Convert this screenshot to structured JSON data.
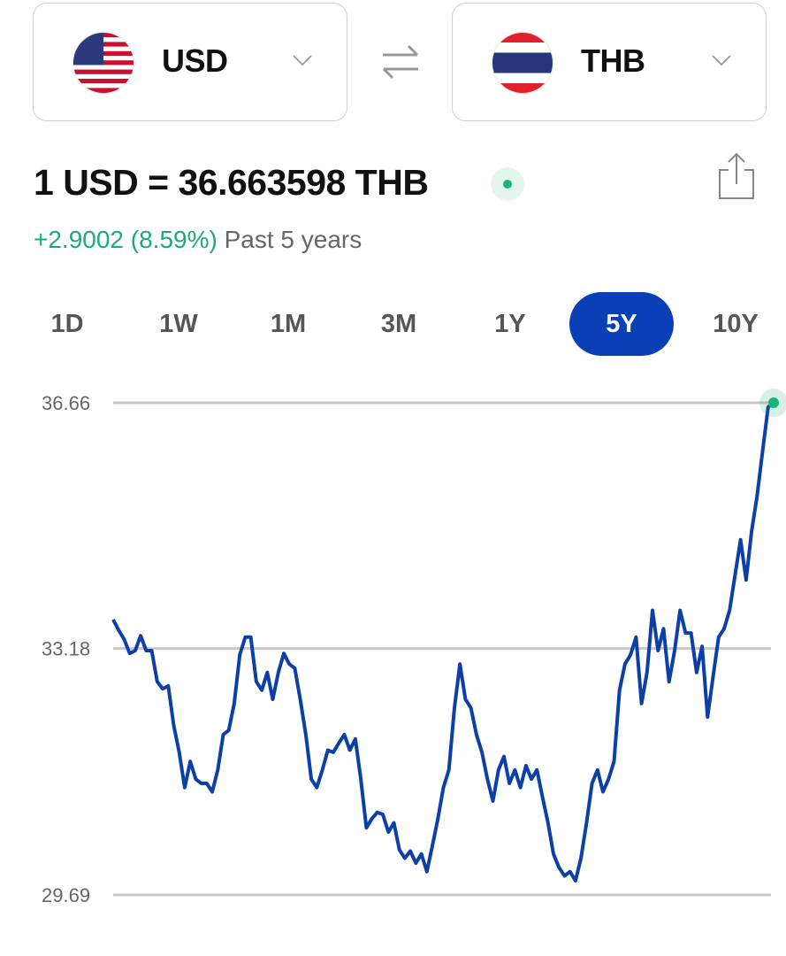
{
  "from_currency": {
    "code": "USD",
    "flag": "us-flag"
  },
  "to_currency": {
    "code": "THB",
    "flag": "thailand-flag"
  },
  "rate_text": "1 USD = 36.663598 THB",
  "change": {
    "value": "+2.9002 (8.59%)",
    "period": "Past 5 years"
  },
  "tabs": [
    {
      "label": "1D"
    },
    {
      "label": "1W"
    },
    {
      "label": "1M"
    },
    {
      "label": "3M"
    },
    {
      "label": "1Y"
    },
    {
      "label": "5Y",
      "active": true
    },
    {
      "label": "10Y"
    }
  ],
  "colors": {
    "accent": "#0a3fb7",
    "line": "#0d3fa8",
    "positive": "#1ea97c",
    "grid": "#c8c8c8"
  },
  "chart_data": {
    "type": "line",
    "title": "",
    "xlabel": "",
    "ylabel": "",
    "y_ticks": [
      "36.66",
      "33.18",
      "29.69"
    ],
    "ylim": [
      29.69,
      36.66
    ],
    "grid": true,
    "series": [
      {
        "values": [
          33.59,
          33.44,
          33.31,
          33.11,
          33.15,
          33.36,
          33.15,
          33.15,
          32.71,
          32.61,
          32.65,
          32.09,
          31.71,
          31.21,
          31.58,
          31.33,
          31.27,
          31.27,
          31.15,
          31.46,
          31.96,
          32.02,
          32.4,
          33.09,
          33.34,
          33.34,
          32.71,
          32.59,
          32.84,
          32.46,
          32.84,
          33.11,
          32.96,
          32.9,
          32.46,
          31.96,
          31.33,
          31.21,
          31.46,
          31.74,
          31.71,
          31.84,
          31.96,
          31.74,
          31.9,
          31.33,
          30.64,
          30.77,
          30.86,
          30.83,
          30.58,
          30.71,
          30.33,
          30.21,
          30.31,
          30.14,
          30.27,
          30.02,
          30.39,
          30.77,
          31.21,
          31.46,
          32.34,
          32.96,
          32.46,
          32.34,
          31.96,
          31.71,
          31.33,
          31.02,
          31.46,
          31.65,
          31.27,
          31.46,
          31.21,
          31.52,
          31.33,
          31.46,
          31.08,
          30.71,
          30.27,
          30.08,
          29.96,
          30.02,
          29.89,
          30.21,
          30.71,
          31.27,
          31.46,
          31.15,
          31.33,
          31.58,
          32.59,
          32.96,
          33.09,
          33.34,
          32.4,
          32.84,
          33.72,
          33.15,
          33.46,
          32.71,
          33.15,
          33.72,
          33.4,
          33.4,
          32.84,
          33.21,
          32.21,
          32.78,
          33.34,
          33.46,
          33.72,
          34.22,
          34.72,
          34.15,
          34.84,
          35.34,
          35.97,
          36.6,
          36.66
        ]
      }
    ]
  }
}
